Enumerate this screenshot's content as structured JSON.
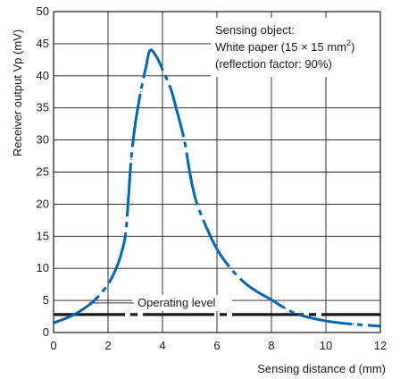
{
  "chart_data": {
    "type": "line",
    "xlabel": "Sensing distance d (mm)",
    "ylabel": "Receiver output Vp (mV)",
    "xlim": [
      0,
      12
    ],
    "ylim": [
      0,
      50
    ],
    "x_ticks": [
      0,
      2,
      4,
      6,
      8,
      10,
      12
    ],
    "y_ticks": [
      0,
      5,
      10,
      15,
      20,
      25,
      30,
      35,
      40,
      45,
      50
    ],
    "grid": true,
    "series": [
      {
        "style": "dash-dot",
        "color": "#0066b3",
        "x": [
          0,
          0.5,
          1.0,
          1.5,
          2.0,
          2.3,
          2.5,
          2.65,
          2.75,
          2.85,
          3.0,
          3.2,
          3.4,
          3.55,
          3.8,
          4.0,
          4.3,
          4.5,
          4.8,
          5.0,
          5.2,
          5.5,
          6.0,
          6.5,
          7.0,
          7.5,
          8.0,
          8.5,
          9.0,
          10.0,
          11.0,
          12.0
        ],
        "y": [
          1.5,
          2.3,
          3.4,
          5.0,
          7.5,
          10.0,
          12.5,
          15.5,
          21.0,
          27.0,
          32.5,
          37.5,
          41.5,
          44.0,
          42.8,
          41.0,
          38.0,
          35.0,
          30.0,
          25.0,
          21.0,
          17.5,
          13.0,
          10.0,
          7.8,
          6.3,
          5.1,
          3.8,
          2.8,
          1.8,
          1.3,
          1.0
        ]
      }
    ],
    "threshold": {
      "label": "Operating level",
      "y": 2.8
    },
    "annotation": {
      "lines": [
        "Sensing object:",
        "White paper (15 × 15 mm",
        "2",
        ")",
        "(reflection factor: 90%)"
      ]
    }
  },
  "colors": {
    "curve": "#0066b3",
    "grid": "#1a1a1a",
    "threshold": "#1a1a1a"
  }
}
